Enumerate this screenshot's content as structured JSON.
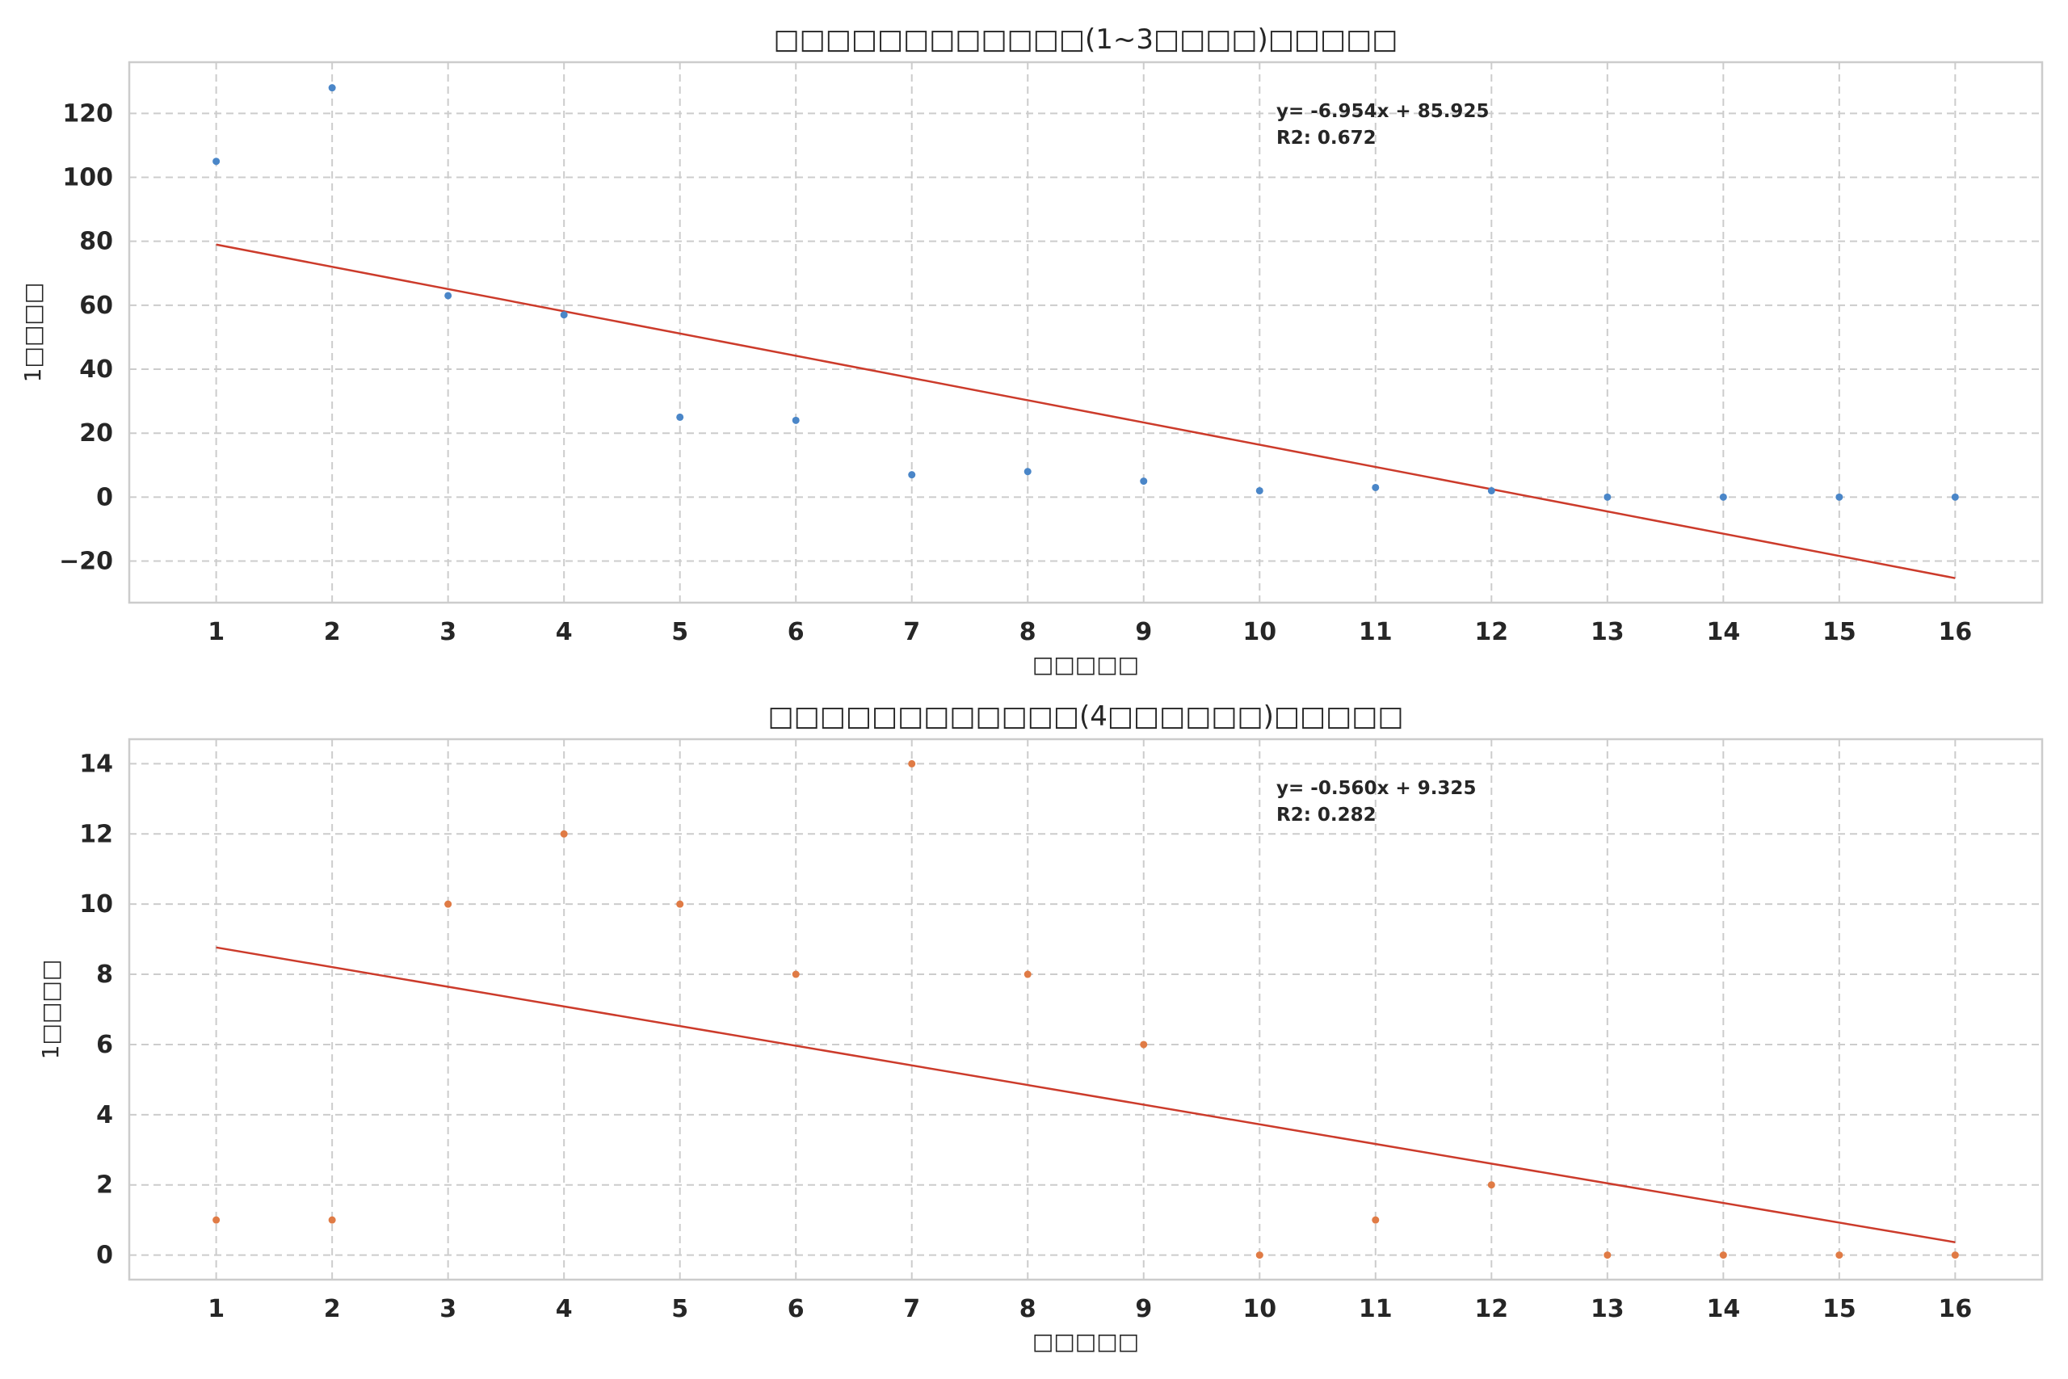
{
  "chart_data": [
    {
      "type": "scatter",
      "title": "□□□□□□□□□□□□(1~3□□□□)□□□□□",
      "xlabel": "□□□□□",
      "ylabel": "1□□□□",
      "x": [
        1,
        2,
        3,
        4,
        5,
        6,
        7,
        8,
        9,
        10,
        11,
        12,
        13,
        14,
        15,
        16
      ],
      "y": [
        105,
        128,
        63,
        57,
        25,
        24,
        7,
        8,
        5,
        2,
        3,
        2,
        0,
        0,
        0,
        0
      ],
      "xticks": [
        "1",
        "2",
        "3",
        "4",
        "5",
        "6",
        "7",
        "8",
        "9",
        "10",
        "11",
        "12",
        "13",
        "14",
        "15",
        "16"
      ],
      "yticks": [
        -20,
        0,
        20,
        40,
        60,
        80,
        100,
        120
      ],
      "yticklabels": [
        "−20",
        "0",
        "20",
        "40",
        "60",
        "80",
        "100",
        "120"
      ],
      "xlim": [
        0.25,
        16.75
      ],
      "ylim": [
        -33,
        136
      ],
      "trendline": {
        "slope": -6.954,
        "intercept": 85.925,
        "x_range": [
          1,
          16
        ]
      },
      "annotation": [
        "y= -6.954x + 85.925",
        "R2: 0.672"
      ],
      "colors": {
        "points": "#4a86c8",
        "trendline": "#cc3b2b"
      },
      "grid": true
    },
    {
      "type": "scatter",
      "title": "□□□□□□□□□□□□(4□□□□□□)□□□□□",
      "xlabel": "□□□□□",
      "ylabel": "1□□□□",
      "x": [
        1,
        2,
        3,
        4,
        5,
        6,
        7,
        8,
        9,
        10,
        11,
        12,
        13,
        14,
        15,
        16
      ],
      "y": [
        1,
        1,
        10,
        12,
        10,
        8,
        14,
        8,
        6,
        0,
        1,
        2,
        0,
        0,
        0,
        0
      ],
      "xticks": [
        "1",
        "2",
        "3",
        "4",
        "5",
        "6",
        "7",
        "8",
        "9",
        "10",
        "11",
        "12",
        "13",
        "14",
        "15",
        "16"
      ],
      "yticks": [
        0,
        2,
        4,
        6,
        8,
        10,
        12,
        14
      ],
      "yticklabels": [
        "0",
        "2",
        "4",
        "6",
        "8",
        "10",
        "12",
        "14"
      ],
      "xlim": [
        0.25,
        16.75
      ],
      "ylim": [
        -0.7,
        14.7
      ],
      "trendline": {
        "slope": -0.56,
        "intercept": 9.325,
        "x_range": [
          1,
          16
        ]
      },
      "annotation": [
        "y= -0.560x + 9.325",
        "R2: 0.282"
      ],
      "colors": {
        "points": "#e07b45",
        "trendline": "#cc3b2b"
      },
      "grid": true
    }
  ]
}
